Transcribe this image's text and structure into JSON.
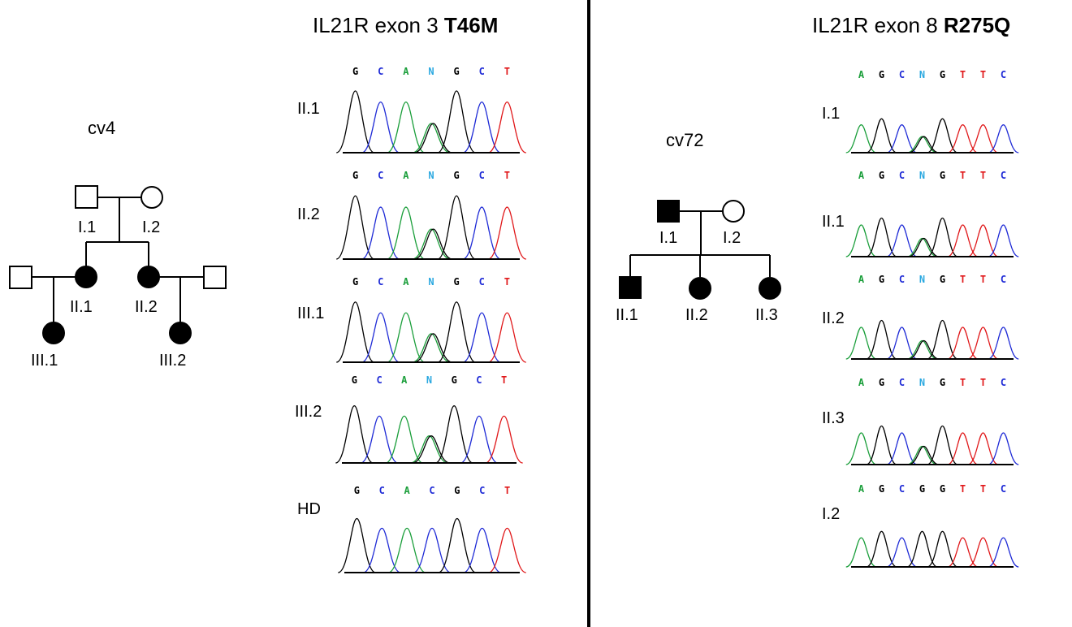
{
  "left_panel": {
    "title_prefix": "IL21R exon 3 ",
    "title_mutation": "T46M",
    "pedigree": {
      "family_label": "cv4",
      "individuals": [
        {
          "id": "I.1",
          "label": "I.1",
          "sex": "male",
          "affected": false
        },
        {
          "id": "I.2",
          "label": "I.2",
          "sex": "female",
          "affected": false
        },
        {
          "id": "spouse1",
          "label": "",
          "sex": "male",
          "affected": false
        },
        {
          "id": "II.1",
          "label": "II.1",
          "sex": "female",
          "affected": true
        },
        {
          "id": "II.2",
          "label": "II.2",
          "sex": "female",
          "affected": true
        },
        {
          "id": "spouse2",
          "label": "",
          "sex": "male",
          "affected": false
        },
        {
          "id": "III.1",
          "label": "III.1",
          "sex": "female",
          "affected": true
        },
        {
          "id": "III.2",
          "label": "III.2",
          "sex": "female",
          "affected": true
        }
      ]
    },
    "chromatograms": [
      {
        "label": "II.1",
        "bases": [
          "G",
          "C",
          "A",
          "N",
          "G",
          "C",
          "T"
        ]
      },
      {
        "label": "II.2",
        "bases": [
          "G",
          "C",
          "A",
          "N",
          "G",
          "C",
          "T"
        ]
      },
      {
        "label": "III.1",
        "bases": [
          "G",
          "C",
          "A",
          "N",
          "G",
          "C",
          "T"
        ]
      },
      {
        "label": "III.2",
        "bases": [
          "G",
          "C",
          "A",
          "N",
          "G",
          "C",
          "T"
        ]
      },
      {
        "label": "HD",
        "bases": [
          "G",
          "C",
          "A",
          "C",
          "G",
          "C",
          "T"
        ]
      }
    ]
  },
  "right_panel": {
    "title_prefix": "IL21R exon 8 ",
    "title_mutation": "R275Q",
    "pedigree": {
      "family_label": "cv72",
      "individuals": [
        {
          "id": "I.1",
          "label": "I.1",
          "sex": "male",
          "affected": true
        },
        {
          "id": "I.2",
          "label": "I.2",
          "sex": "female",
          "affected": false
        },
        {
          "id": "II.1",
          "label": "II.1",
          "sex": "male",
          "affected": true
        },
        {
          "id": "II.2",
          "label": "II.2",
          "sex": "female",
          "affected": true
        },
        {
          "id": "II.3",
          "label": "II.3",
          "sex": "female",
          "affected": true
        }
      ]
    },
    "chromatograms": [
      {
        "label": "I.1",
        "bases": [
          "A",
          "G",
          "C",
          "N",
          "G",
          "T",
          "T",
          "C"
        ]
      },
      {
        "label": "II.1",
        "bases": [
          "A",
          "G",
          "C",
          "N",
          "G",
          "T",
          "T",
          "C"
        ]
      },
      {
        "label": "II.2",
        "bases": [
          "A",
          "G",
          "C",
          "N",
          "G",
          "T",
          "T",
          "C"
        ]
      },
      {
        "label": "II.3",
        "bases": [
          "A",
          "G",
          "C",
          "N",
          "G",
          "T",
          "T",
          "C"
        ]
      },
      {
        "label": "I.2",
        "bases": [
          "A",
          "G",
          "C",
          "G",
          "G",
          "T",
          "T",
          "C"
        ]
      }
    ]
  },
  "base_colors": {
    "A": "#1a9e3a",
    "C": "#1f2bd6",
    "G": "#000000",
    "T": "#e0181a",
    "N": "#2aa8e0"
  }
}
